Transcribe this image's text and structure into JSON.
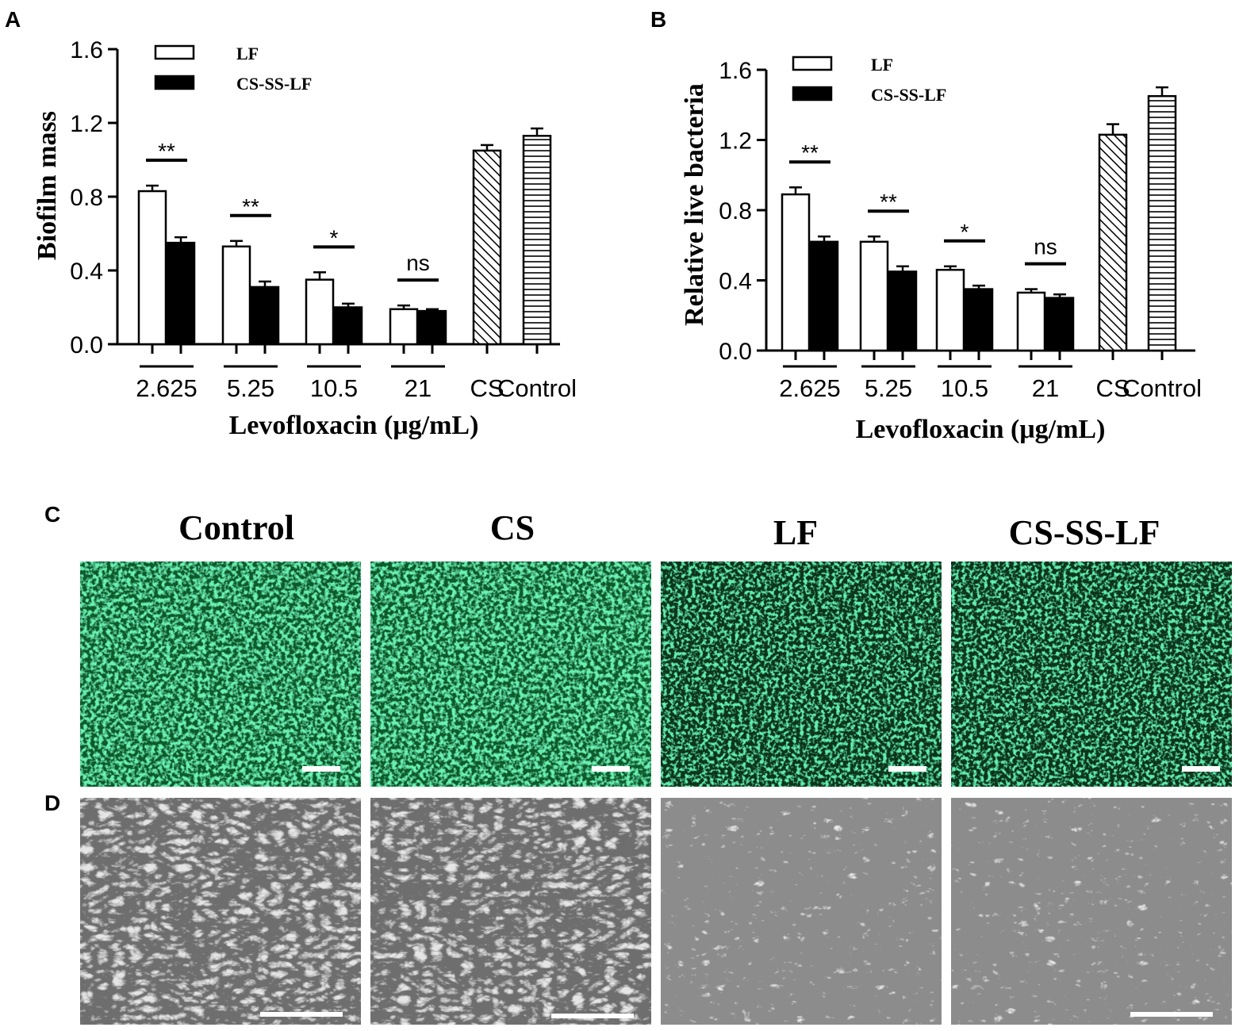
{
  "panels": {
    "A": "A",
    "B": "B",
    "C": "C",
    "D": "D"
  },
  "chart_data": [
    {
      "type": "bar",
      "panel": "A",
      "ylabel": "Biofilm mass",
      "xlabel": "Levofloxacin (μg/mL)",
      "ylim": [
        0,
        1.6
      ],
      "yticks": [
        "0.0",
        "0.4",
        "0.8",
        "1.2",
        "1.6"
      ],
      "legend_position": "top-left",
      "groups": [
        {
          "label": "2.625",
          "bars": [
            {
              "series": "LF",
              "value": 0.83,
              "err": 0.03
            },
            {
              "series": "CS-SS-LF",
              "value": 0.55,
              "err": 0.03
            }
          ],
          "sig": "**"
        },
        {
          "label": "5.25",
          "bars": [
            {
              "series": "LF",
              "value": 0.53,
              "err": 0.03
            },
            {
              "series": "CS-SS-LF",
              "value": 0.31,
              "err": 0.03
            }
          ],
          "sig": "**"
        },
        {
          "label": "10.5",
          "bars": [
            {
              "series": "LF",
              "value": 0.35,
              "err": 0.04
            },
            {
              "series": "CS-SS-LF",
              "value": 0.2,
              "err": 0.02
            }
          ],
          "sig": "*"
        },
        {
          "label": "21",
          "bars": [
            {
              "series": "LF",
              "value": 0.19,
              "err": 0.02
            },
            {
              "series": "CS-SS-LF",
              "value": 0.18,
              "err": 0.01
            }
          ],
          "sig": "ns"
        },
        {
          "label": "CS",
          "bars": [
            {
              "series": "CS",
              "value": 1.05,
              "err": 0.03
            }
          ]
        },
        {
          "label": "Control",
          "bars": [
            {
              "series": "Control",
              "value": 1.13,
              "err": 0.04
            }
          ]
        }
      ],
      "legend": [
        {
          "name": "LF",
          "style": "open"
        },
        {
          "name": "CS-SS-LF",
          "style": "solid"
        }
      ]
    },
    {
      "type": "bar",
      "panel": "B",
      "ylabel": "Relative live bacteria",
      "xlabel": "Levofloxacin (μg/mL)",
      "ylim": [
        0,
        1.6
      ],
      "yticks": [
        "0.0",
        "0.4",
        "0.8",
        "1.2",
        "1.6"
      ],
      "legend_position": "top-left",
      "groups": [
        {
          "label": "2.625",
          "bars": [
            {
              "series": "LF",
              "value": 0.89,
              "err": 0.04
            },
            {
              "series": "CS-SS-LF",
              "value": 0.62,
              "err": 0.03
            }
          ],
          "sig": "**"
        },
        {
          "label": "5.25",
          "bars": [
            {
              "series": "LF",
              "value": 0.62,
              "err": 0.03
            },
            {
              "series": "CS-SS-LF",
              "value": 0.45,
              "err": 0.03
            }
          ],
          "sig": "**"
        },
        {
          "label": "10.5",
          "bars": [
            {
              "series": "LF",
              "value": 0.46,
              "err": 0.02
            },
            {
              "series": "CS-SS-LF",
              "value": 0.35,
              "err": 0.02
            }
          ],
          "sig": "*"
        },
        {
          "label": "21",
          "bars": [
            {
              "series": "LF",
              "value": 0.33,
              "err": 0.02
            },
            {
              "series": "CS-SS-LF",
              "value": 0.3,
              "err": 0.02
            }
          ],
          "sig": "ns"
        },
        {
          "label": "CS",
          "bars": [
            {
              "series": "CS",
              "value": 1.23,
              "err": 0.06
            }
          ]
        },
        {
          "label": "Control",
          "bars": [
            {
              "series": "Control",
              "value": 1.45,
              "err": 0.05
            }
          ]
        }
      ],
      "legend": [
        {
          "name": "LF",
          "style": "open"
        },
        {
          "name": "CS-SS-LF",
          "style": "solid"
        }
      ]
    }
  ],
  "images": {
    "titles": [
      "Control",
      "CS",
      "LF",
      "CS-SS-LF"
    ],
    "fluorescence_color": "#1fd46a",
    "fluorescence_bg": "#07351a",
    "sem_bg": "#8a8a8a"
  }
}
